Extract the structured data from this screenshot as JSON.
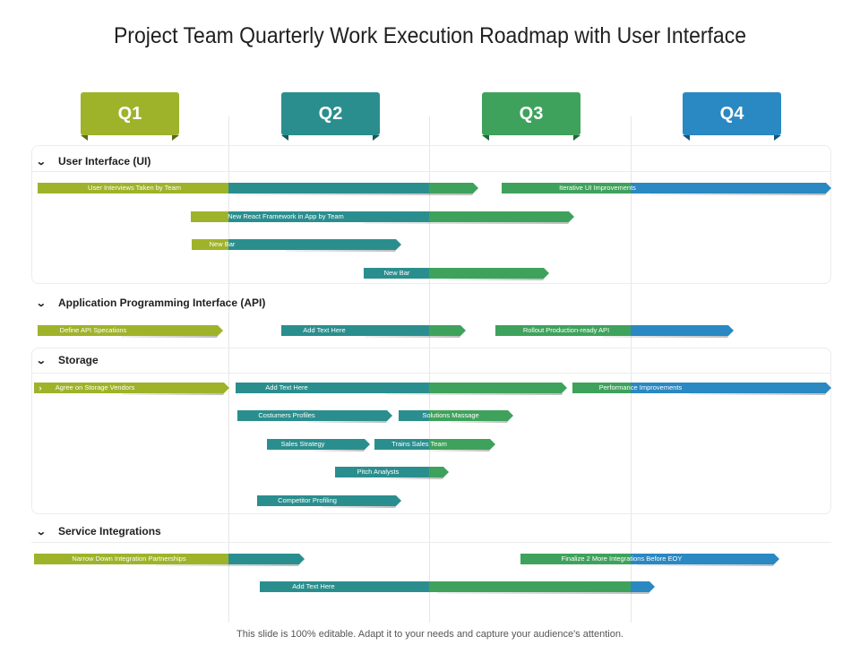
{
  "title": "Project Team Quarterly Work Execution Roadmap with User Interface",
  "footer": "This slide is 100% editable. Adapt it to your needs and capture your audience's attention.",
  "colors": {
    "green_light": "#9fb32a",
    "teal": "#2b8e8e",
    "green": "#3fa25c",
    "blue": "#2a88c2"
  },
  "quarters": [
    {
      "label": "Q1",
      "color": "#9fb32a",
      "fold": "#5e6b14"
    },
    {
      "label": "Q2",
      "color": "#2b8e8e",
      "fold": "#165a5a"
    },
    {
      "label": "Q3",
      "color": "#3fa25c",
      "fold": "#1f6a36"
    },
    {
      "label": "Q4",
      "color": "#2a88c2",
      "fold": "#15557f"
    }
  ],
  "sections": [
    {
      "id": "ui",
      "label": "User Interface (UI)",
      "icon": "chevron-down-icon"
    },
    {
      "id": "api",
      "label": "Application Programming Interface (API)",
      "icon": "chevron-down-icon"
    },
    {
      "id": "storage",
      "label": "Storage",
      "icon": "chevron-down-icon"
    },
    {
      "id": "integrations",
      "label": "Service Integrations",
      "icon": "chevron-down-icon"
    }
  ],
  "tasks": [
    {
      "section": "ui",
      "label": "User Interviews Taken by Team"
    },
    {
      "section": "ui",
      "label": "Iterative UI Improvements"
    },
    {
      "section": "ui",
      "label": "New React Framework in App by Team"
    },
    {
      "section": "ui",
      "label": "New Bar"
    },
    {
      "section": "ui",
      "label": "New Bar"
    },
    {
      "section": "api",
      "label": "Define API Specations"
    },
    {
      "section": "api",
      "label": "Add Text Here"
    },
    {
      "section": "api",
      "label": "Rollout Production-ready API"
    },
    {
      "section": "storage",
      "label": "Agree on Storage Vendors"
    },
    {
      "section": "storage",
      "label": "Add Text Here"
    },
    {
      "section": "storage",
      "label": "Performance Improvements"
    },
    {
      "section": "storage",
      "label": "Costumers Profiles"
    },
    {
      "section": "storage",
      "label": "Solutions Massage"
    },
    {
      "section": "storage",
      "label": "Sales Strategy"
    },
    {
      "section": "storage",
      "label": "Trains Sales Team"
    },
    {
      "section": "storage",
      "label": "Pitch Analysts"
    },
    {
      "section": "storage",
      "label": "Competitor Profiling"
    },
    {
      "section": "integrations",
      "label": "Narrow Down Integration Partnerships"
    },
    {
      "section": "integrations",
      "label": "Finalize 2 More Integrations Before EOY"
    },
    {
      "section": "integrations",
      "label": "Add Text Here"
    }
  ]
}
